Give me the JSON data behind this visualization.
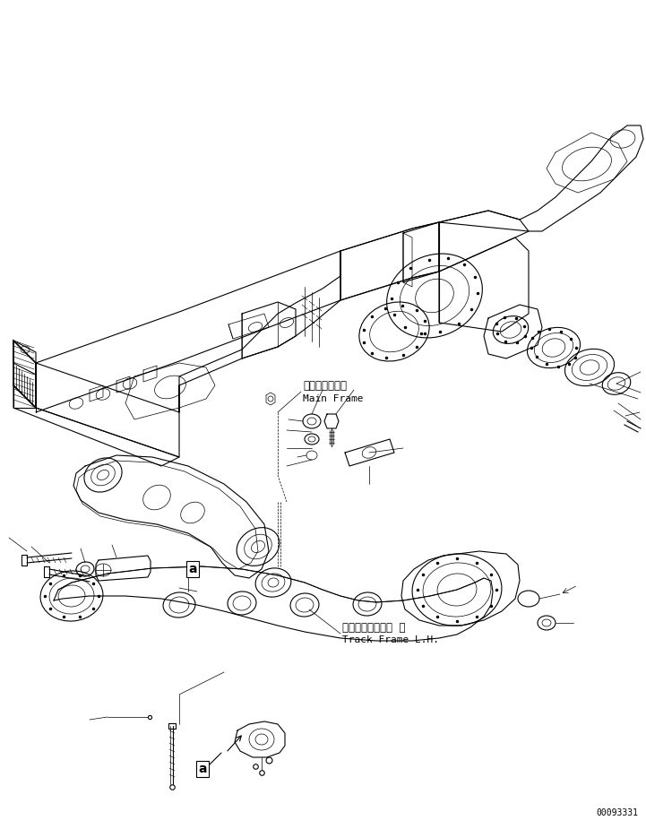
{
  "background_color": "#ffffff",
  "line_color": "#000000",
  "label_main_frame_jp": "メインフレーム",
  "label_main_frame_en": "Main Frame",
  "label_track_frame_jp": "トラックフレーム  左",
  "label_track_frame_en": "Track Frame L.H.",
  "watermark": "00093331",
  "label_a": "a",
  "font_size_label": 8,
  "font_size_watermark": 7,
  "lw_main": 0.8,
  "lw_thin": 0.5,
  "lw_thick": 1.2
}
